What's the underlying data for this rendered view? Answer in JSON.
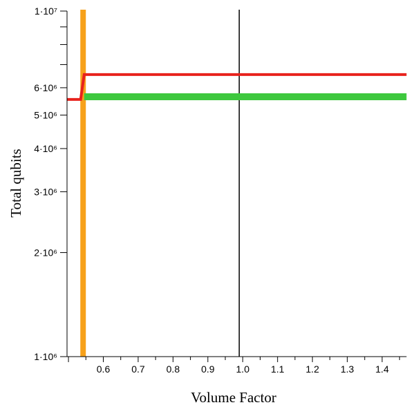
{
  "chart_data": {
    "type": "line",
    "xlabel": "Volume Factor",
    "ylabel": "Total qubits",
    "y_scale": "log",
    "xlim": [
      0.5,
      1.47
    ],
    "ylim": [
      1000000,
      10000000
    ],
    "x_ticks": [
      0.6,
      0.7,
      0.8,
      0.9,
      1.0,
      1.1,
      1.2,
      1.3,
      1.4
    ],
    "x_tick_labels": [
      "0.6",
      "0.7",
      "0.8",
      "0.9",
      "1.0",
      "1.1",
      "1.2",
      "1.3",
      "1.4"
    ],
    "y_labeled_ticks": [
      {
        "value": 1000000,
        "label": "1·10⁶"
      },
      {
        "value": 2000000,
        "label": "2·10⁶"
      },
      {
        "value": 3000000,
        "label": "3·10⁶"
      },
      {
        "value": 4000000,
        "label": "4·10⁶"
      },
      {
        "value": 5000000,
        "label": "5·10⁶"
      },
      {
        "value": 6000000,
        "label": "6·10⁶"
      },
      {
        "value": 10000000,
        "label": "1·10⁷"
      }
    ],
    "y_minor_ticks": [
      7000000,
      8000000,
      9000000
    ],
    "series": [
      {
        "color": "#e8221c",
        "x": [
          0.495,
          0.535,
          0.545,
          1.47
        ],
        "y": [
          5550000,
          5550000,
          6550000,
          6550000
        ]
      },
      {
        "color": "#3ec83e",
        "x": [
          0.545,
          1.47
        ],
        "y": [
          5650000,
          5650000
        ]
      }
    ],
    "vertical_lines": [
      {
        "x": 0.542,
        "color": "#f7a11a"
      },
      {
        "x": 0.99,
        "color": "#000000"
      }
    ]
  }
}
